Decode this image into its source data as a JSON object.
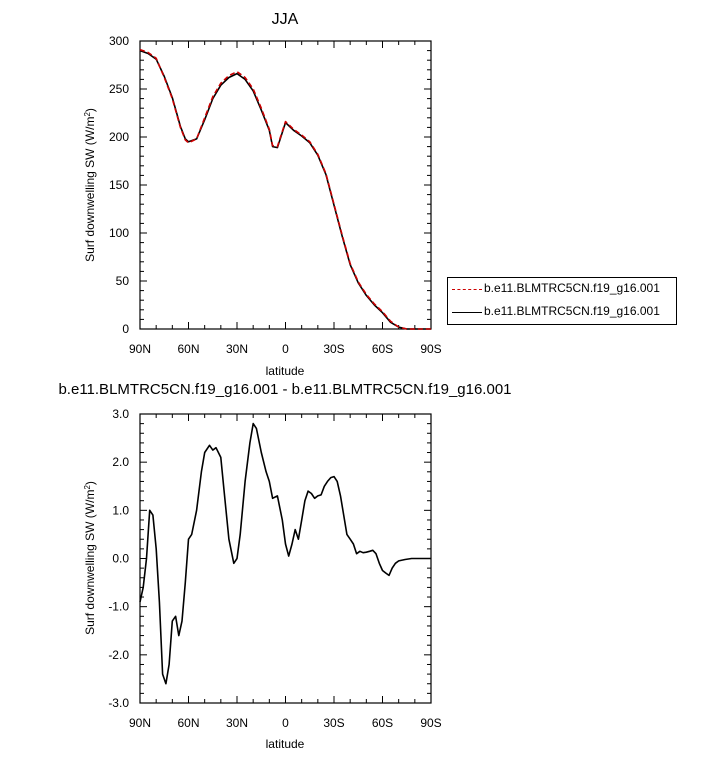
{
  "chart_data": [
    {
      "type": "line",
      "title": "JJA",
      "xlabel": "latitude",
      "ylabel": "Surf downwelling SW (W/m",
      "ylabel_sup": "2",
      "ylabel_close": ")",
      "xlim": [
        90,
        -90
      ],
      "ylim": [
        0,
        300
      ],
      "xticks": [
        90,
        60,
        30,
        0,
        -30,
        -60,
        -90
      ],
      "xticklabels": [
        "90N",
        "60N",
        "30N",
        "0",
        "30S",
        "60S",
        "90S"
      ],
      "yticks": [
        0,
        50,
        100,
        150,
        200,
        250,
        300
      ],
      "yticklabels": [
        "0",
        "50",
        "100",
        "150",
        "200",
        "250",
        "300"
      ],
      "legend_position": "right",
      "series": [
        {
          "name": "b.e11.BLMTRC5CN.f19_g16.001",
          "color": "#cc0000",
          "dash": "dashed",
          "x": [
            90,
            85,
            80,
            75,
            70,
            65,
            62,
            60,
            55,
            50,
            45,
            40,
            35,
            30,
            25,
            20,
            15,
            10,
            8,
            5,
            0,
            -5,
            -10,
            -15,
            -20,
            -25,
            -30,
            -35,
            -40,
            -45,
            -50,
            -55,
            -60,
            -65,
            -70,
            -75,
            -80,
            -85,
            -90
          ],
          "values": [
            291,
            288,
            282,
            262,
            240,
            210,
            197,
            194,
            198,
            220,
            242,
            256,
            264,
            268,
            262,
            250,
            230,
            208,
            191,
            190,
            216,
            208,
            202,
            195,
            182,
            162,
            130,
            98,
            68,
            49,
            36,
            26,
            18,
            8,
            2,
            0,
            0,
            0,
            0
          ]
        },
        {
          "name": "b.e11.BLMTRC5CN.f19_g16.001",
          "color": "#000000",
          "dash": "solid",
          "x": [
            90,
            85,
            80,
            75,
            70,
            65,
            62,
            60,
            55,
            50,
            45,
            40,
            35,
            30,
            25,
            20,
            15,
            10,
            8,
            5,
            0,
            -5,
            -10,
            -15,
            -20,
            -25,
            -30,
            -35,
            -40,
            -45,
            -50,
            -55,
            -60,
            -65,
            -70,
            -75,
            -80,
            -85,
            -90
          ],
          "values": [
            290,
            287,
            281,
            263,
            241,
            211,
            198,
            195,
            198,
            218,
            240,
            254,
            262,
            266,
            260,
            248,
            228,
            207,
            190,
            189,
            215,
            207,
            201,
            194,
            181,
            161,
            129,
            97,
            67,
            48,
            35,
            25,
            17,
            7,
            2,
            0,
            0,
            0,
            0
          ]
        }
      ]
    },
    {
      "type": "line",
      "title": "b.e11.BLMTRC5CN.f19_g16.001 - b.e11.BLMTRC5CN.f19_g16.001",
      "xlabel": "latitude",
      "ylabel": "Surf downwelling SW (W/m",
      "ylabel_sup": "2",
      "ylabel_close": ")",
      "xlim": [
        90,
        -90
      ],
      "ylim": [
        -3,
        3
      ],
      "xticks": [
        90,
        60,
        30,
        0,
        -30,
        -60,
        -90
      ],
      "xticklabels": [
        "90N",
        "60N",
        "30N",
        "0",
        "30S",
        "60S",
        "90S"
      ],
      "yticks": [
        -3,
        -2,
        -1,
        0,
        1,
        2,
        3
      ],
      "yticklabels": [
        "-3.0",
        "-2.0",
        "-1.0",
        "0.0",
        "1.0",
        "2.0",
        "3.0"
      ],
      "series": [
        {
          "color": "#000000",
          "x": [
            90,
            88,
            86,
            84,
            82,
            80,
            78,
            76,
            74,
            72,
            70,
            68,
            66,
            64,
            62,
            60,
            58,
            55,
            52,
            50,
            47,
            45,
            43,
            40,
            38,
            35,
            32,
            30,
            28,
            25,
            22,
            20,
            18,
            15,
            12,
            10,
            8,
            5,
            2,
            0,
            -2,
            -4,
            -6,
            -8,
            -10,
            -12,
            -14,
            -16,
            -18,
            -20,
            -22,
            -24,
            -26,
            -28,
            -30,
            -32,
            -34,
            -36,
            -38,
            -40,
            -42,
            -44,
            -46,
            -48,
            -50,
            -52,
            -54,
            -56,
            -58,
            -60,
            -62,
            -64,
            -66,
            -68,
            -70,
            -74,
            -78,
            -82,
            -86,
            -90
          ],
          "values": [
            -0.9,
            -0.6,
            0.0,
            1.0,
            0.9,
            0.2,
            -0.9,
            -2.4,
            -2.6,
            -2.2,
            -1.3,
            -1.2,
            -1.6,
            -1.3,
            -0.5,
            0.4,
            0.5,
            1.0,
            1.8,
            2.2,
            2.35,
            2.25,
            2.3,
            2.1,
            1.4,
            0.4,
            -0.1,
            0.0,
            0.5,
            1.6,
            2.4,
            2.8,
            2.7,
            2.2,
            1.8,
            1.6,
            1.25,
            1.3,
            0.8,
            0.3,
            0.05,
            0.3,
            0.6,
            0.4,
            0.8,
            1.2,
            1.4,
            1.35,
            1.25,
            1.3,
            1.32,
            1.5,
            1.6,
            1.68,
            1.7,
            1.6,
            1.3,
            0.9,
            0.5,
            0.4,
            0.3,
            0.1,
            0.15,
            0.12,
            0.13,
            0.15,
            0.17,
            0.1,
            -0.1,
            -0.25,
            -0.3,
            -0.35,
            -0.2,
            -0.1,
            -0.05,
            -0.02,
            0.0,
            0.0,
            0.0,
            0.0
          ]
        }
      ]
    }
  ]
}
